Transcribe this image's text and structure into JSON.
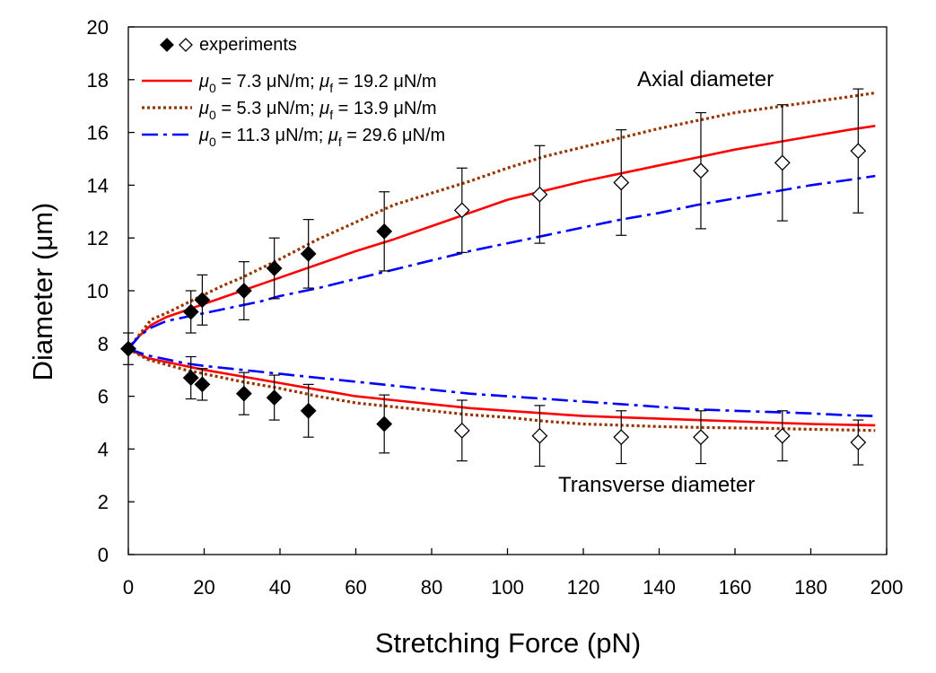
{
  "chart_data": {
    "type": "line",
    "xlabel": "Stretching Force (pN)",
    "ylabel_prefix": "Diameter (",
    "ylabel_mu": "μ",
    "ylabel_suffix": "m)",
    "xlim": [
      0,
      200
    ],
    "ylim": [
      0,
      20
    ],
    "xticks": [
      "0",
      "20",
      "40",
      "60",
      "80",
      "100",
      "120",
      "140",
      "160",
      "180",
      "200"
    ],
    "yticks": [
      "0",
      "2",
      "4",
      "6",
      "8",
      "10",
      "12",
      "14",
      "16",
      "18",
      "20"
    ],
    "grid": false,
    "legend_position": "top-left",
    "legend": {
      "markers_label": "experiments",
      "entries": [
        {
          "id": "case1",
          "mu0_text": " = 7.3 μN/m; ",
          "muf_text": " = 19.2 μN/m",
          "color": "#ff0000",
          "style": "solid"
        },
        {
          "id": "case2",
          "mu0_text": " = 5.3 μN/m; ",
          "muf_text": " = 13.9 μN/m",
          "color": "#993300",
          "style": "dotted"
        },
        {
          "id": "case3",
          "mu0_text": " = 11.3 μN/m; ",
          "muf_text": " = 29.6 μN/m",
          "color": "#0000ff",
          "style": "dashdot"
        }
      ],
      "mu_symbol": "μ",
      "sub0": "0",
      "subf": "f"
    },
    "annotations": {
      "axial": "Axial diameter",
      "transverse": "Transverse diameter"
    },
    "experiments_filled": {
      "axial": [
        {
          "x": 0,
          "y": 7.8,
          "err": 0.6
        },
        {
          "x": 16.5,
          "y": 9.2,
          "err": 0.8
        },
        {
          "x": 19.5,
          "y": 9.65,
          "err": 0.95
        },
        {
          "x": 30.5,
          "y": 10.0,
          "err": 1.1
        },
        {
          "x": 38.5,
          "y": 10.85,
          "err": 1.15
        },
        {
          "x": 47.5,
          "y": 11.4,
          "err": 1.3
        },
        {
          "x": 67.5,
          "y": 12.25,
          "err": 1.5
        }
      ],
      "transverse": [
        {
          "x": 16.5,
          "y": 6.7,
          "err": 0.8
        },
        {
          "x": 19.5,
          "y": 6.45,
          "err": 0.6
        },
        {
          "x": 30.5,
          "y": 6.1,
          "err": 0.8
        },
        {
          "x": 38.5,
          "y": 5.95,
          "err": 0.85
        },
        {
          "x": 47.5,
          "y": 5.45,
          "err": 1.0
        },
        {
          "x": 67.5,
          "y": 4.95,
          "err": 1.1
        }
      ]
    },
    "experiments_open": {
      "axial": [
        {
          "x": 88,
          "y": 13.05,
          "err": 1.6
        },
        {
          "x": 108.5,
          "y": 13.65,
          "err": 1.85
        },
        {
          "x": 130,
          "y": 14.1,
          "err": 2.0
        },
        {
          "x": 151,
          "y": 14.55,
          "err": 2.2
        },
        {
          "x": 172.5,
          "y": 14.85,
          "err": 2.2
        },
        {
          "x": 192.5,
          "y": 15.3,
          "err": 2.35
        }
      ],
      "transverse": [
        {
          "x": 88,
          "y": 4.7,
          "err": 1.15
        },
        {
          "x": 108.5,
          "y": 4.5,
          "err": 1.15
        },
        {
          "x": 130,
          "y": 4.45,
          "err": 1.0
        },
        {
          "x": 151,
          "y": 4.45,
          "err": 1.0
        },
        {
          "x": 172.5,
          "y": 4.5,
          "err": 0.95
        },
        {
          "x": 192.5,
          "y": 4.25,
          "err": 0.85
        }
      ]
    },
    "series": [
      {
        "id": "case1",
        "color": "#ff0000",
        "style": "solid",
        "axial": {
          "x": [
            0,
            3,
            6,
            10,
            15,
            20,
            25,
            30,
            35,
            40,
            50,
            60,
            70,
            80,
            90,
            100,
            110,
            120,
            130,
            140,
            150,
            160,
            170,
            180,
            190,
            197
          ],
          "y": [
            7.8,
            8.3,
            8.7,
            9.0,
            9.25,
            9.5,
            9.75,
            10.0,
            10.25,
            10.5,
            11.0,
            11.5,
            11.95,
            12.45,
            12.95,
            13.45,
            13.8,
            14.15,
            14.45,
            14.75,
            15.05,
            15.35,
            15.6,
            15.85,
            16.1,
            16.25
          ]
        },
        "transverse": {
          "x": [
            0,
            5,
            10,
            15,
            20,
            30,
            40,
            50,
            60,
            70,
            80,
            90,
            100,
            110,
            120,
            130,
            140,
            150,
            160,
            170,
            180,
            190,
            197
          ],
          "y": [
            7.8,
            7.45,
            7.3,
            7.15,
            7.0,
            6.75,
            6.5,
            6.25,
            6.0,
            5.85,
            5.7,
            5.55,
            5.45,
            5.35,
            5.25,
            5.2,
            5.15,
            5.1,
            5.05,
            5.0,
            4.95,
            4.92,
            4.9
          ]
        }
      },
      {
        "id": "case2",
        "color": "#993300",
        "style": "dotted",
        "axial": {
          "x": [
            0,
            3,
            6,
            10,
            15,
            20,
            25,
            30,
            35,
            40,
            50,
            60,
            70,
            80,
            90,
            100,
            110,
            120,
            130,
            140,
            150,
            160,
            170,
            180,
            190,
            197
          ],
          "y": [
            7.8,
            8.35,
            8.9,
            9.15,
            9.5,
            9.85,
            10.2,
            10.5,
            10.85,
            11.2,
            11.95,
            12.6,
            13.25,
            13.7,
            14.15,
            14.65,
            15.1,
            15.45,
            15.8,
            16.15,
            16.45,
            16.75,
            16.95,
            17.15,
            17.35,
            17.5
          ]
        },
        "transverse": {
          "x": [
            0,
            5,
            10,
            15,
            20,
            30,
            40,
            50,
            60,
            70,
            80,
            90,
            100,
            110,
            120,
            130,
            140,
            150,
            160,
            170,
            180,
            190,
            197
          ],
          "y": [
            7.8,
            7.4,
            7.2,
            7.0,
            6.85,
            6.55,
            6.3,
            6.0,
            5.75,
            5.6,
            5.45,
            5.3,
            5.2,
            5.05,
            4.95,
            4.9,
            4.85,
            4.82,
            4.8,
            4.78,
            4.75,
            4.72,
            4.7
          ]
        }
      },
      {
        "id": "case3",
        "color": "#0000ff",
        "style": "dashdot",
        "axial": {
          "x": [
            0,
            3,
            6,
            10,
            15,
            20,
            25,
            30,
            35,
            40,
            50,
            60,
            70,
            80,
            90,
            100,
            110,
            120,
            130,
            140,
            150,
            160,
            170,
            180,
            190,
            197
          ],
          "y": [
            7.8,
            8.3,
            8.6,
            8.85,
            9.0,
            9.15,
            9.3,
            9.45,
            9.6,
            9.8,
            10.1,
            10.45,
            10.8,
            11.15,
            11.5,
            11.8,
            12.1,
            12.4,
            12.7,
            12.95,
            13.25,
            13.5,
            13.75,
            14.0,
            14.2,
            14.35
          ]
        },
        "transverse": {
          "x": [
            0,
            5,
            10,
            15,
            20,
            30,
            40,
            50,
            60,
            70,
            80,
            90,
            100,
            110,
            120,
            130,
            140,
            150,
            160,
            170,
            180,
            190,
            197
          ],
          "y": [
            7.8,
            7.55,
            7.4,
            7.25,
            7.15,
            7.0,
            6.85,
            6.7,
            6.55,
            6.4,
            6.25,
            6.1,
            6.0,
            5.9,
            5.8,
            5.7,
            5.6,
            5.5,
            5.45,
            5.4,
            5.35,
            5.28,
            5.25
          ]
        }
      }
    ]
  }
}
